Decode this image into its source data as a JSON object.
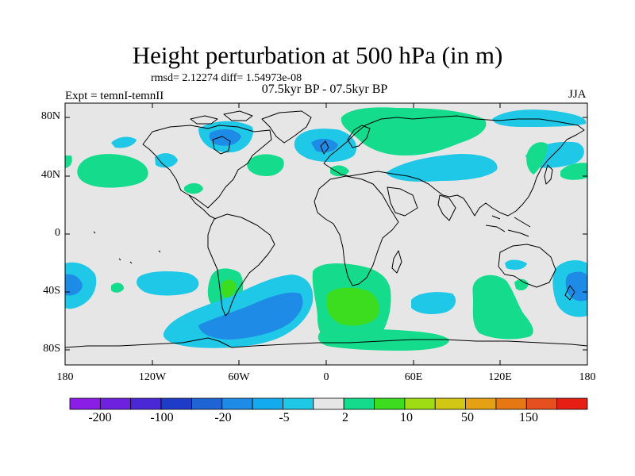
{
  "header": {
    "title": "Height perturbation at 500 hPa (in m)",
    "stats": "rmsd= 2.12274 diff= 1.54973e-08",
    "period": "07.5kyr BP - 07.5kyr BP",
    "experiment": "Expt = temnI-temnII",
    "season": "JJA"
  },
  "axes": {
    "lat_labels": [
      "80N",
      "40N",
      "0",
      "40S",
      "80S"
    ],
    "lon_labels": [
      "180",
      "120W",
      "60W",
      "0",
      "60E",
      "120E",
      "180"
    ]
  },
  "colorbar": {
    "colors": [
      "#8a1ee6",
      "#6e22e0",
      "#4a28d6",
      "#1e3cc8",
      "#1e64d2",
      "#1e8ce6",
      "#14aaf0",
      "#1ec8e6",
      "#e6e6e6",
      "#14dc8c",
      "#3cdc1e",
      "#a0dc14",
      "#d2c814",
      "#e6a014",
      "#e67814",
      "#e6501e",
      "#e61e14"
    ],
    "labels": [
      "-200",
      "-100",
      "-20",
      "-5",
      "2",
      "10",
      "50",
      "150"
    ]
  },
  "palette": {
    "ocean_bg": "#e6e6e6",
    "pos_light": "#14dc8c",
    "pos_mid": "#3cdc1e",
    "neg_light": "#1ec8e6",
    "neg_mid": "#14aaf0",
    "neg_dark": "#1e8ce6"
  }
}
